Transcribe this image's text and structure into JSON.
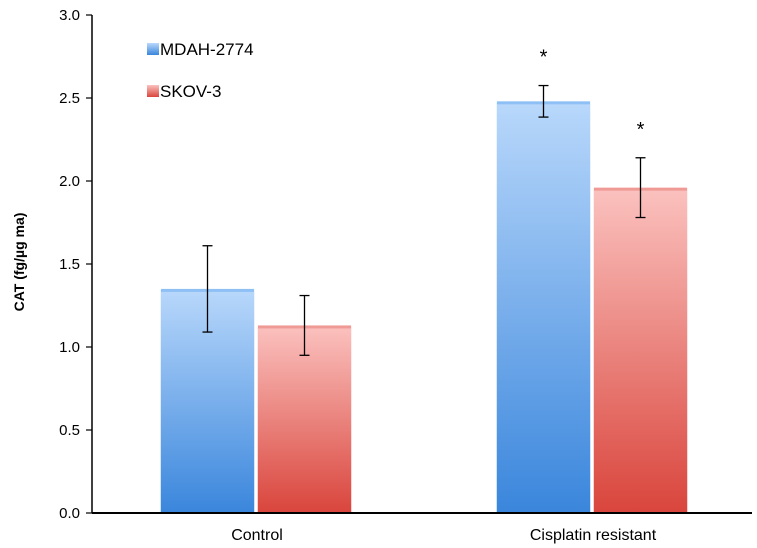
{
  "chart_data": {
    "type": "bar",
    "title": "",
    "xlabel": "",
    "ylabel": "CAT (fg/µg ma)",
    "ylim": [
      0,
      3.0
    ],
    "yticks": [
      "0.0",
      "0.5",
      "1.0",
      "1.5",
      "2.0",
      "2.5",
      "3.0"
    ],
    "categories": [
      "Control",
      "Cisplatin resistant"
    ],
    "legend_position": "top-left",
    "grid": false,
    "series": [
      {
        "name": "MDAH-2774",
        "color": "#6fa8ec",
        "values": [
          1.35,
          2.48
        ],
        "errors": [
          0.26,
          0.095
        ],
        "annotations": [
          "",
          "*"
        ]
      },
      {
        "name": "SKOV-3",
        "color": "#e8716b",
        "values": [
          1.13,
          1.96
        ],
        "errors": [
          0.18,
          0.18
        ],
        "annotations": [
          "",
          "*"
        ]
      }
    ]
  }
}
